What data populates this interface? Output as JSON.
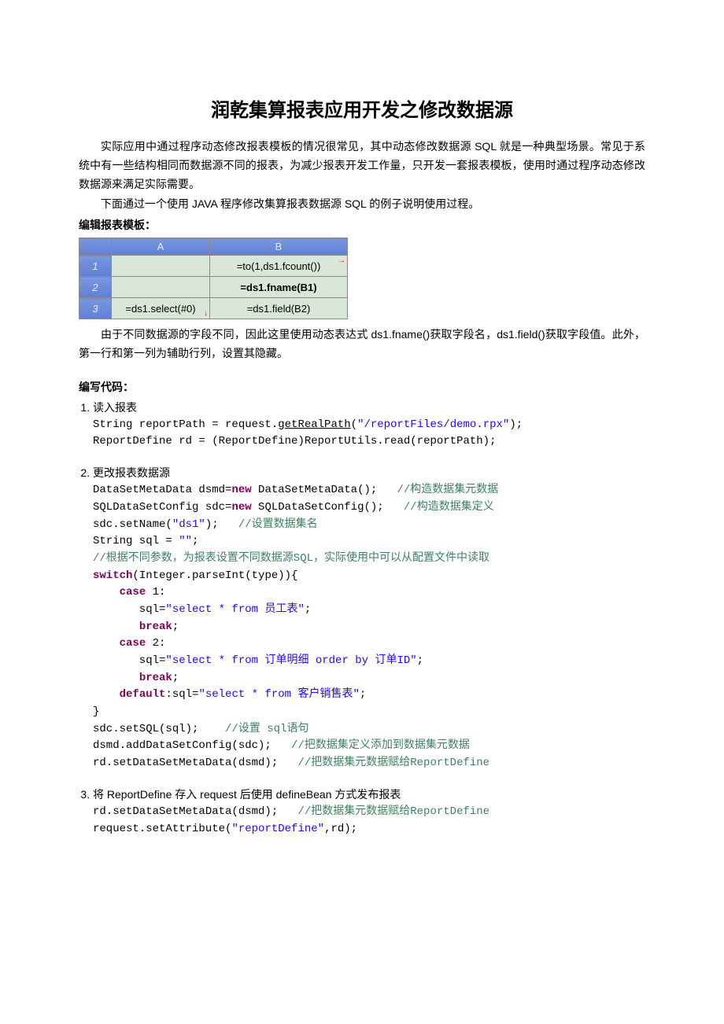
{
  "title": "润乾集算报表应用开发之修改数据源",
  "intro": {
    "p1": "实际应用中通过程序动态修改报表模板的情况很常见，其中动态修改数据源 SQL 就是一种典型场景。常见于系统中有一些结构相同而数据源不同的报表，为减少报表开发工作量，只开发一套报表模板，使用时通过程序动态修改数据源来满足实际需要。",
    "p2": "下面通过一个使用 JAVA 程序修改集算报表数据源 SQL 的例子说明使用过程。"
  },
  "section1_label": "编辑报表模板：",
  "rpt": {
    "colA": "A",
    "colB": "B",
    "r1": "1",
    "r2": "2",
    "r3": "3",
    "b1": "=to(1,ds1.fcount())",
    "b2": "=ds1.fname(B1)",
    "a3": "=ds1.select(#0)",
    "b3": "=ds1.field(B2)"
  },
  "after_table": "由于不同数据源的字段不同，因此这里使用动态表达式 ds1.fname()获取字段名，ds1.field()获取字段值。此外，第一行和第一列为辅助行列，设置其隐藏。",
  "section2_label": "编写代码：",
  "steps": {
    "s1_title": "读入报表",
    "s2_title": "更改报表数据源",
    "s3_title": "将 ReportDefine 存入 request 后使用 defineBean 方式发布报表"
  },
  "code1": {
    "l1a": "String reportPath = request.",
    "l1b": "getRealPath",
    "l1c": "(",
    "l1d": "\"/reportFiles/demo.rpx\"",
    "l1e": ");",
    "l2": "ReportDefine rd = (ReportDefine)ReportUtils.read(reportPath);"
  },
  "code2": {
    "l1a": "DataSetMetaData dsmd=",
    "kw_new": "new",
    "l1b": " DataSetMetaData();   ",
    "l1c": "//构造数据集元数据",
    "l2a": "SQLDataSetConfig sdc=",
    "l2b": " SQLDataSetConfig();   ",
    "l2c": "//构造数据集定义",
    "l3a": "sdc.setName(",
    "l3b": "\"ds1\"",
    "l3c": ");   ",
    "l3d": "//设置数据集名",
    "l4a": "String sql = ",
    "l4b": "\"\"",
    "l4c": ";",
    "l5": "//根据不同参数，为报表设置不同数据源SQL，实际使用中可以从配置文件中读取",
    "kw_switch": "switch",
    "l6a": "(Integer.parseInt(type)){",
    "kw_case": "case",
    "kw_break": "break",
    "kw_default": "default",
    "c1": " 1:",
    "c2": " 2:",
    "sql1a": "       sql=",
    "sql1b": "\"select * from 员工表\"",
    "sc": ";",
    "sql2b": "\"select * from 订单明细 order by 订单ID\"",
    "dfl_a": ":sql=",
    "dfl_b": "\"select * from 客户销售表\"",
    "l_close": "}",
    "l7a": "sdc.setSQL(sql);    ",
    "l7b": "//设置 sql语句",
    "l8a": "dsmd.addDataSetConfig(sdc);   ",
    "l8b": "//把数据集定义添加到数据集元数据",
    "l9a": "rd.setDataSetMetaData(dsmd);   ",
    "l9b": "//把数据集元数据赋给ReportDefine"
  },
  "code3": {
    "l1a": "rd.setDataSetMetaData(dsmd);   ",
    "l1b": "//把数据集元数据赋给ReportDefine",
    "l2a": "request.setAttribute(",
    "l2b": "\"reportDefine\"",
    "l2c": ",rd);"
  }
}
